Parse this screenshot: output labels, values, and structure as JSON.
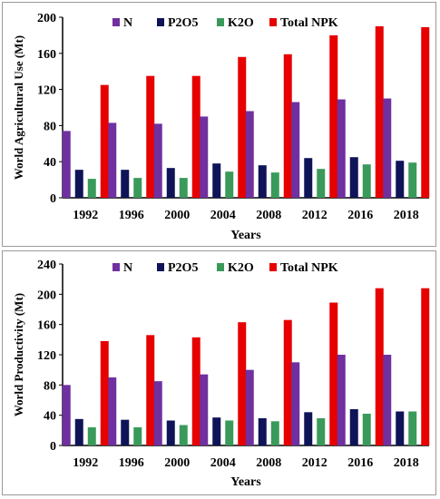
{
  "chart_data": [
    {
      "type": "bar",
      "title": "",
      "xlabel": "Years",
      "ylabel": "World Agricultural Use (Mt)",
      "categories": [
        "1992",
        "1996",
        "2000",
        "2004",
        "2008",
        "2012",
        "2016",
        "2018"
      ],
      "ylim": [
        0,
        200
      ],
      "yticks": [
        "0",
        "40",
        "80",
        "120",
        "160",
        "200"
      ],
      "legend_position": "top",
      "grid": false,
      "series": [
        {
          "name": "N",
          "color": "#7030a0",
          "values": [
            74,
            83,
            82,
            90,
            96,
            106,
            109,
            110
          ]
        },
        {
          "name": "P2O5",
          "color": "#0f1357",
          "values": [
            31,
            31,
            33,
            38,
            36,
            44,
            45,
            41
          ]
        },
        {
          "name": "K2O",
          "color": "#3a9a5a",
          "values": [
            21,
            22,
            22,
            29,
            28,
            32,
            37,
            39
          ]
        },
        {
          "name": "Total NPK",
          "color": "#e60000",
          "values": [
            125,
            135,
            135,
            156,
            159,
            180,
            190,
            189
          ]
        }
      ]
    },
    {
      "type": "bar",
      "title": "",
      "xlabel": "Years",
      "ylabel": "World Productivity (Mt)",
      "categories": [
        "1992",
        "1996",
        "2000",
        "2004",
        "2008",
        "2012",
        "2016",
        "2018"
      ],
      "ylim": [
        0,
        240
      ],
      "yticks": [
        "0",
        "40",
        "80",
        "120",
        "160",
        "200",
        "240"
      ],
      "legend_position": "top",
      "grid": false,
      "series": [
        {
          "name": "N",
          "color": "#7030a0",
          "values": [
            80,
            90,
            85,
            94,
            100,
            110,
            120,
            120
          ]
        },
        {
          "name": "P2O5",
          "color": "#0f1357",
          "values": [
            35,
            34,
            33,
            37,
            36,
            44,
            48,
            45
          ]
        },
        {
          "name": "K2O",
          "color": "#3a9a5a",
          "values": [
            24,
            24,
            27,
            33,
            32,
            36,
            42,
            45
          ]
        },
        {
          "name": "Total NPK",
          "color": "#e60000",
          "values": [
            138,
            146,
            143,
            163,
            166,
            189,
            208,
            208
          ]
        }
      ]
    }
  ]
}
